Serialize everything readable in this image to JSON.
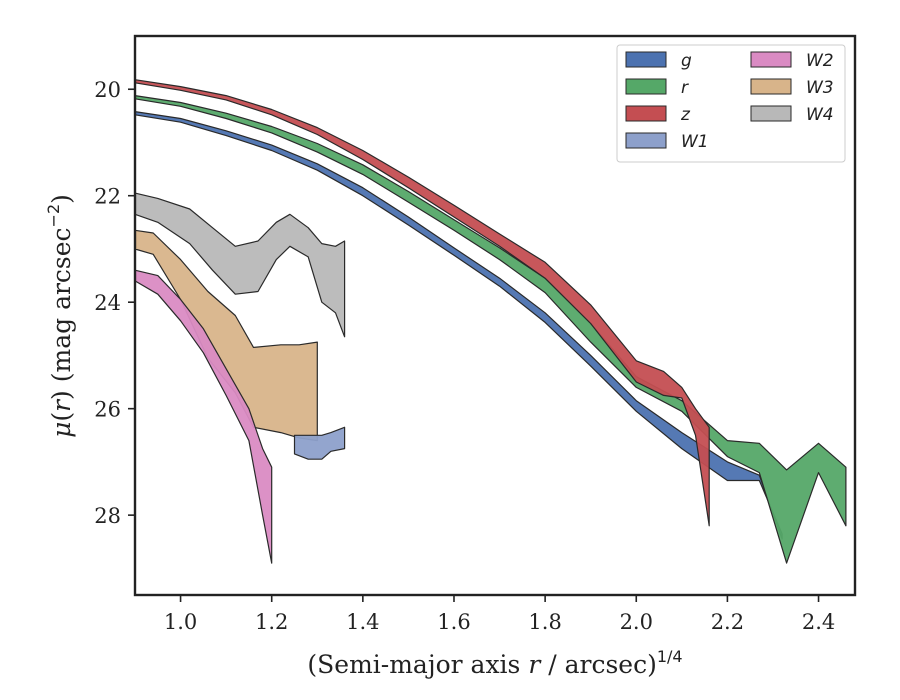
{
  "chart_data": {
    "type": "area",
    "title": "",
    "xlabel": "(Semi-major axis r / arcsec)",
    "xlabel_parts": {
      "pre": "(Semi-major axis ",
      "var": "r",
      "post": " / arcsec)",
      "sup": "1/4"
    },
    "ylabel": "μ(r) (mag arcsec−2)",
    "ylabel_parts": {
      "mu": "μ",
      "open": "(",
      "var": "r",
      "close": ") (mag arcsec",
      "sup": "−2",
      "end": ")"
    },
    "xlim": [
      0.9,
      2.48
    ],
    "ylim": [
      29.5,
      19.0
    ],
    "y_inverted": true,
    "xticks": [
      1.0,
      1.2,
      1.4,
      1.6,
      1.8,
      2.0,
      2.2,
      2.4
    ],
    "xtick_labels": [
      "1.0",
      "1.2",
      "1.4",
      "1.6",
      "1.8",
      "2.0",
      "2.2",
      "2.4"
    ],
    "yticks": [
      20,
      22,
      24,
      26,
      28
    ],
    "ytick_labels": [
      "20",
      "22",
      "24",
      "26",
      "28"
    ],
    "grid": false,
    "legend_position": "top-right",
    "legend_columns": 2,
    "series": [
      {
        "name": "g",
        "color": "#4c72b0",
        "x": [
          0.9,
          1.0,
          1.1,
          1.2,
          1.3,
          1.4,
          1.5,
          1.6,
          1.7,
          1.8,
          1.9,
          2.0,
          2.1,
          2.2,
          2.27,
          2.32
        ],
        "y_bright": [
          20.42,
          20.55,
          20.78,
          21.05,
          21.4,
          21.85,
          22.4,
          22.98,
          23.55,
          24.2,
          25.0,
          25.85,
          26.45,
          27.0,
          27.25,
          28.45
        ],
        "y_faint": [
          20.48,
          20.62,
          20.87,
          21.15,
          21.52,
          22.0,
          22.55,
          23.12,
          23.7,
          24.38,
          25.2,
          26.05,
          26.75,
          27.35,
          27.35,
          28.35
        ]
      },
      {
        "name": "r",
        "color": "#55a868",
        "x": [
          0.9,
          1.0,
          1.1,
          1.2,
          1.3,
          1.4,
          1.5,
          1.6,
          1.7,
          1.8,
          1.9,
          2.0,
          2.1,
          2.2,
          2.27,
          2.33,
          2.4,
          2.46
        ],
        "y_bright": [
          20.12,
          20.25,
          20.45,
          20.7,
          21.02,
          21.42,
          21.92,
          22.45,
          22.98,
          23.55,
          24.4,
          25.4,
          25.85,
          26.6,
          26.65,
          27.15,
          26.65,
          27.1
        ],
        "y_faint": [
          20.18,
          20.32,
          20.55,
          20.82,
          21.18,
          21.6,
          22.12,
          22.65,
          23.2,
          23.82,
          24.75,
          25.6,
          26.05,
          26.9,
          27.2,
          28.9,
          27.2,
          28.2
        ]
      },
      {
        "name": "z",
        "color": "#c44e52",
        "x": [
          0.9,
          1.0,
          1.1,
          1.2,
          1.3,
          1.4,
          1.5,
          1.6,
          1.7,
          1.8,
          1.9,
          2.0,
          2.06,
          2.1,
          2.13,
          2.16
        ],
        "y_bright": [
          19.82,
          19.95,
          20.12,
          20.38,
          20.72,
          21.15,
          21.65,
          22.18,
          22.72,
          23.25,
          24.05,
          25.1,
          25.3,
          25.6,
          26.0,
          26.35
        ],
        "y_faint": [
          19.88,
          20.02,
          20.2,
          20.48,
          20.85,
          21.32,
          21.85,
          22.4,
          22.95,
          23.55,
          24.4,
          25.5,
          25.75,
          25.8,
          26.5,
          28.2
        ]
      },
      {
        "name": "W1",
        "color": "#8da0cb",
        "x": [
          1.25,
          1.28,
          1.31,
          1.33,
          1.36
        ],
        "y_bright": [
          26.5,
          26.5,
          26.5,
          26.45,
          26.35
        ],
        "y_faint": [
          26.85,
          26.95,
          26.95,
          26.8,
          26.75
        ]
      },
      {
        "name": "W2",
        "color": "#da8bc3",
        "x": [
          0.9,
          0.95,
          1.0,
          1.05,
          1.1,
          1.15,
          1.18,
          1.2
        ],
        "y_bright": [
          23.4,
          23.5,
          23.95,
          24.5,
          25.25,
          26.0,
          26.75,
          27.1
        ],
        "y_faint": [
          23.6,
          23.85,
          24.35,
          24.95,
          25.75,
          26.6,
          28.0,
          28.9
        ]
      },
      {
        "name": "W3",
        "color": "#d8b48a",
        "x": [
          0.9,
          0.94,
          1.0,
          1.06,
          1.12,
          1.16,
          1.22,
          1.26,
          1.3
        ],
        "y_bright": [
          22.65,
          22.7,
          23.2,
          23.8,
          24.25,
          24.85,
          24.8,
          24.8,
          24.75
        ],
        "y_faint": [
          23.0,
          23.1,
          23.95,
          25.05,
          25.7,
          26.35,
          26.45,
          26.55,
          26.6
        ]
      },
      {
        "name": "W4",
        "color": "#b8b8b8",
        "x": [
          0.9,
          0.95,
          1.02,
          1.07,
          1.12,
          1.17,
          1.21,
          1.24,
          1.28,
          1.31,
          1.34,
          1.36
        ],
        "y_bright": [
          21.95,
          22.05,
          22.25,
          22.6,
          22.95,
          22.85,
          22.5,
          22.35,
          22.6,
          22.9,
          22.95,
          22.85
        ],
        "y_faint": [
          22.35,
          22.5,
          22.9,
          23.4,
          23.85,
          23.8,
          23.2,
          22.95,
          23.15,
          24.0,
          24.2,
          24.65
        ]
      }
    ]
  }
}
